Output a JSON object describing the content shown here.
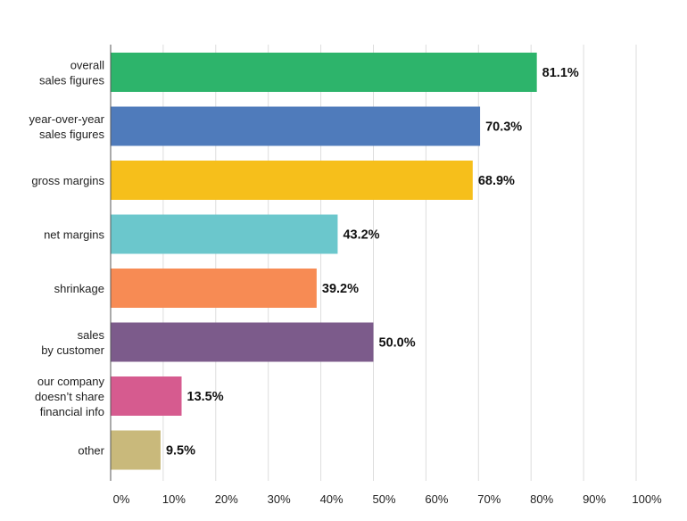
{
  "chart_data": {
    "type": "bar",
    "orientation": "horizontal",
    "categories": [
      [
        "overall",
        "sales figures"
      ],
      [
        "year-over-year",
        "sales figures"
      ],
      [
        "gross margins"
      ],
      [
        "net margins"
      ],
      [
        "shrinkage"
      ],
      [
        "sales",
        "by customer"
      ],
      [
        "our company",
        "doesn’t share",
        "financial info"
      ],
      [
        "other"
      ]
    ],
    "values": [
      81.1,
      70.3,
      68.9,
      43.2,
      39.2,
      50.0,
      13.5,
      9.5
    ],
    "value_labels": [
      "81.1%",
      "70.3%",
      "68.9%",
      "43.2%",
      "39.2%",
      "50.0%",
      "13.5%",
      "9.5%"
    ],
    "colors": [
      "#2db46b",
      "#4f7bbb",
      "#f6bf1b",
      "#6bc7cc",
      "#f78b54",
      "#7c5b8b",
      "#d65b8f",
      "#c9b97b"
    ],
    "xlim": [
      0,
      100
    ],
    "xticks": [
      "0%",
      "10%",
      "20%",
      "30%",
      "40%",
      "50%",
      "60%",
      "70%",
      "80%",
      "90%",
      "100%"
    ],
    "grid": true,
    "legend": "none",
    "title": "",
    "xlabel": "",
    "ylabel": ""
  }
}
